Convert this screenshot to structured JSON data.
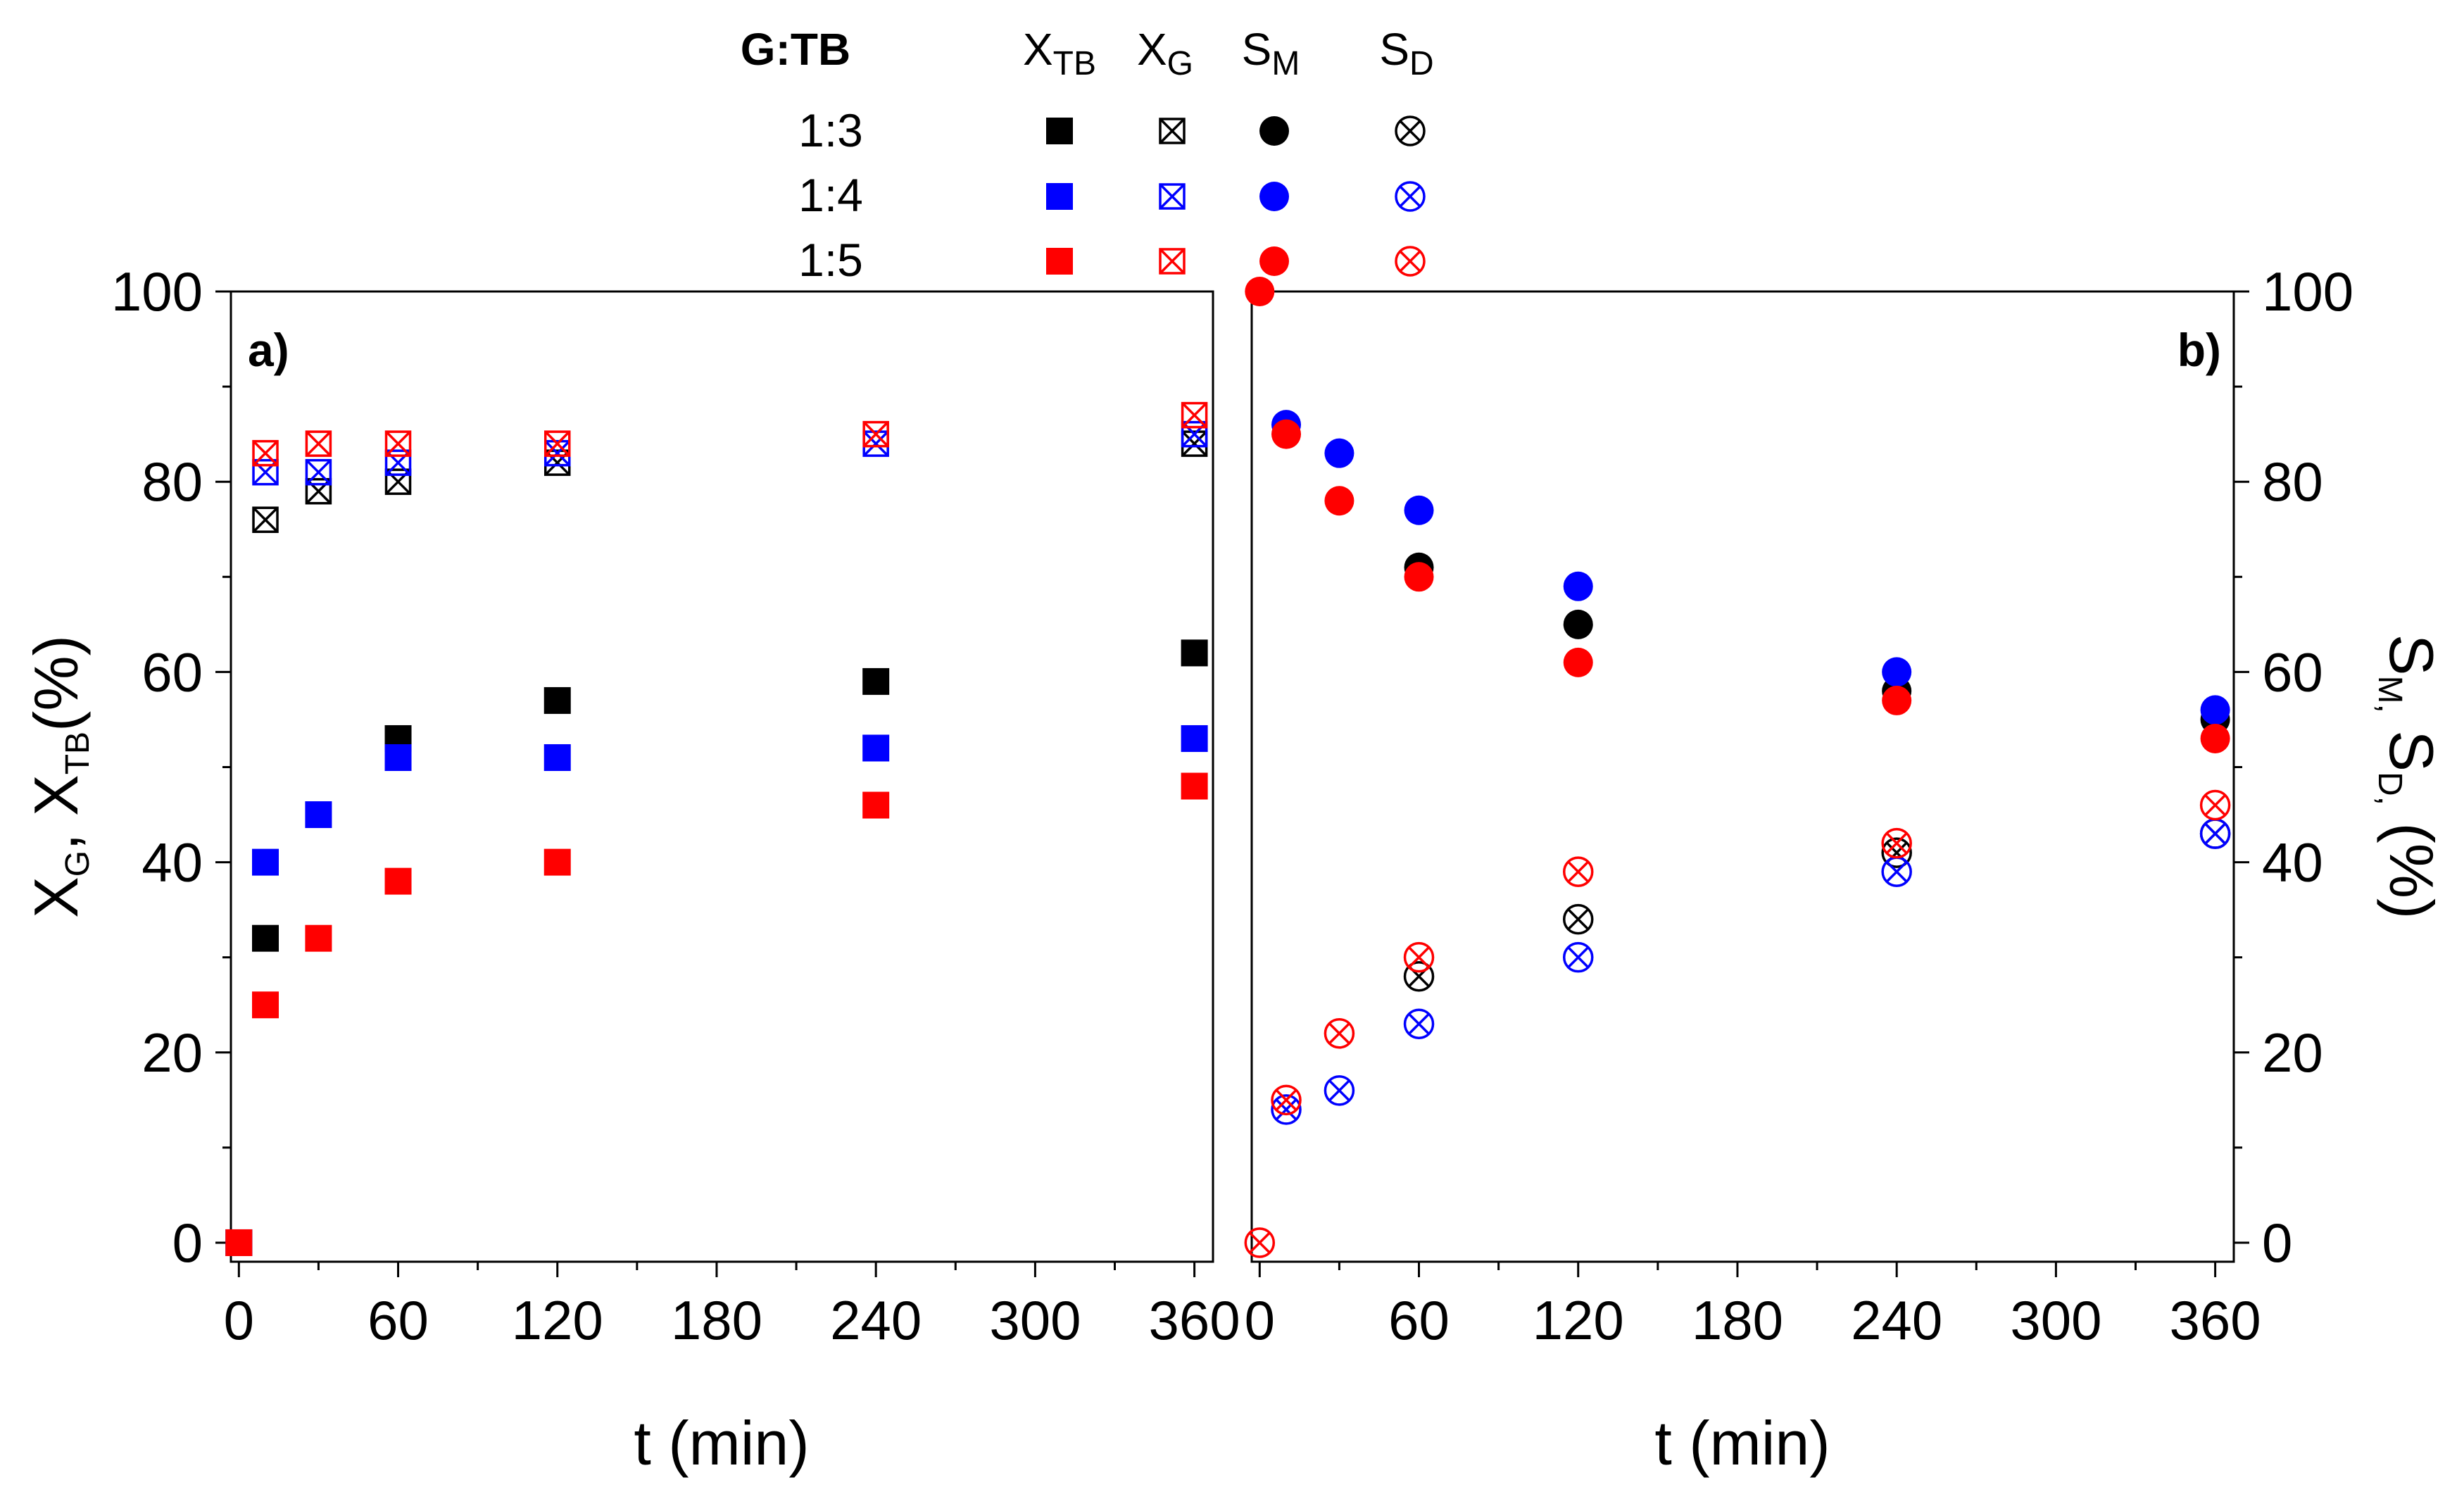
{
  "legend": {
    "group_header": "G:TB",
    "columns": [
      {
        "main": "X",
        "sub": "TB"
      },
      {
        "main": "X",
        "sub": "G"
      },
      {
        "main": "S",
        "sub": "M"
      },
      {
        "main": "S",
        "sub": "D"
      }
    ],
    "rows": [
      {
        "label": "1:3",
        "color": "#000000"
      },
      {
        "label": "1:4",
        "color": "#0000ff"
      },
      {
        "label": "1:5",
        "color": "#ff0000"
      }
    ]
  },
  "colors": {
    "r13": "#000000",
    "r14": "#0000ff",
    "r15": "#ff0000"
  },
  "chart_data": [
    {
      "type": "scatter",
      "panel_label": "a)",
      "xlabel": "t (min)",
      "ylabel": {
        "parts": [
          {
            "main": "X",
            "sub": "G"
          },
          {
            "main": ", X",
            "sub": "TB"
          },
          {
            "main": "(%)",
            "sub": ""
          }
        ]
      },
      "xlim": [
        -3,
        367
      ],
      "ylim": [
        -2,
        100
      ],
      "xticks": [
        "0",
        "60",
        "120",
        "180",
        "240",
        "300",
        "360"
      ],
      "yticks": [
        "0",
        "20",
        "40",
        "60",
        "80",
        "100"
      ],
      "series": [
        {
          "name": "X_TB 1:3",
          "color": "#000000",
          "marker": "square",
          "x": [
            0,
            10,
            60,
            120,
            240,
            360
          ],
          "y": [
            0,
            32,
            53,
            57,
            59,
            62
          ]
        },
        {
          "name": "X_TB 1:4",
          "color": "#0000ff",
          "marker": "square",
          "x": [
            0,
            10,
            30,
            60,
            120,
            240,
            360
          ],
          "y": [
            0,
            40,
            45,
            51,
            51,
            52,
            53
          ]
        },
        {
          "name": "X_TB 1:5",
          "color": "#ff0000",
          "marker": "square",
          "x": [
            0,
            10,
            30,
            60,
            120,
            240,
            360
          ],
          "y": [
            0,
            25,
            32,
            38,
            40,
            46,
            48
          ]
        },
        {
          "name": "X_G 1:3",
          "color": "#000000",
          "marker": "square-x",
          "x": [
            10,
            30,
            60,
            120,
            360
          ],
          "y": [
            76,
            79,
            80,
            82,
            84
          ]
        },
        {
          "name": "X_G 1:4",
          "color": "#0000ff",
          "marker": "square-x",
          "x": [
            10,
            30,
            60,
            120,
            240,
            360
          ],
          "y": [
            81,
            81,
            82,
            83,
            84,
            85
          ]
        },
        {
          "name": "X_G 1:5",
          "color": "#ff0000",
          "marker": "square-x",
          "x": [
            10,
            30,
            60,
            120,
            240,
            360
          ],
          "y": [
            83,
            84,
            84,
            84,
            85,
            87
          ]
        }
      ]
    },
    {
      "type": "scatter",
      "panel_label": "b)",
      "xlabel": "t (min)",
      "ylabel": {
        "parts": [
          {
            "main": "S",
            "sub": "M,"
          },
          {
            "main": " S",
            "sub": "D,"
          },
          {
            "main": " (%)",
            "sub": ""
          }
        ]
      },
      "xlim": [
        -3,
        367
      ],
      "ylim": [
        -2,
        100
      ],
      "xticks": [
        "0",
        "60",
        "120",
        "180",
        "240",
        "300",
        "360"
      ],
      "yticks": [
        "0",
        "20",
        "40",
        "60",
        "80",
        "100"
      ],
      "series": [
        {
          "name": "S_M 1:3",
          "color": "#000000",
          "marker": "circle",
          "x": [
            60,
            120,
            240,
            360
          ],
          "y": [
            71,
            65,
            58,
            55
          ]
        },
        {
          "name": "S_M 1:4",
          "color": "#0000ff",
          "marker": "circle",
          "x": [
            10,
            30,
            60,
            120,
            240,
            360
          ],
          "y": [
            86,
            83,
            77,
            69,
            60,
            56
          ]
        },
        {
          "name": "S_M 1:5",
          "color": "#ff0000",
          "marker": "circle",
          "x": [
            0,
            10,
            30,
            60,
            120,
            240,
            360
          ],
          "y": [
            100,
            85,
            78,
            70,
            61,
            57,
            53
          ]
        },
        {
          "name": "S_D 1:3",
          "color": "#000000",
          "marker": "circle-x",
          "x": [
            60,
            120,
            240,
            360
          ],
          "y": [
            28,
            34,
            41,
            43
          ]
        },
        {
          "name": "S_D 1:4",
          "color": "#0000ff",
          "marker": "circle-x",
          "x": [
            10,
            30,
            60,
            120,
            240,
            360
          ],
          "y": [
            14,
            16,
            23,
            30,
            39,
            43
          ]
        },
        {
          "name": "S_D 1:5",
          "color": "#ff0000",
          "marker": "circle-x",
          "x": [
            0,
            10,
            30,
            60,
            120,
            240,
            360
          ],
          "y": [
            0,
            15,
            22,
            30,
            39,
            42,
            46
          ]
        }
      ]
    }
  ]
}
